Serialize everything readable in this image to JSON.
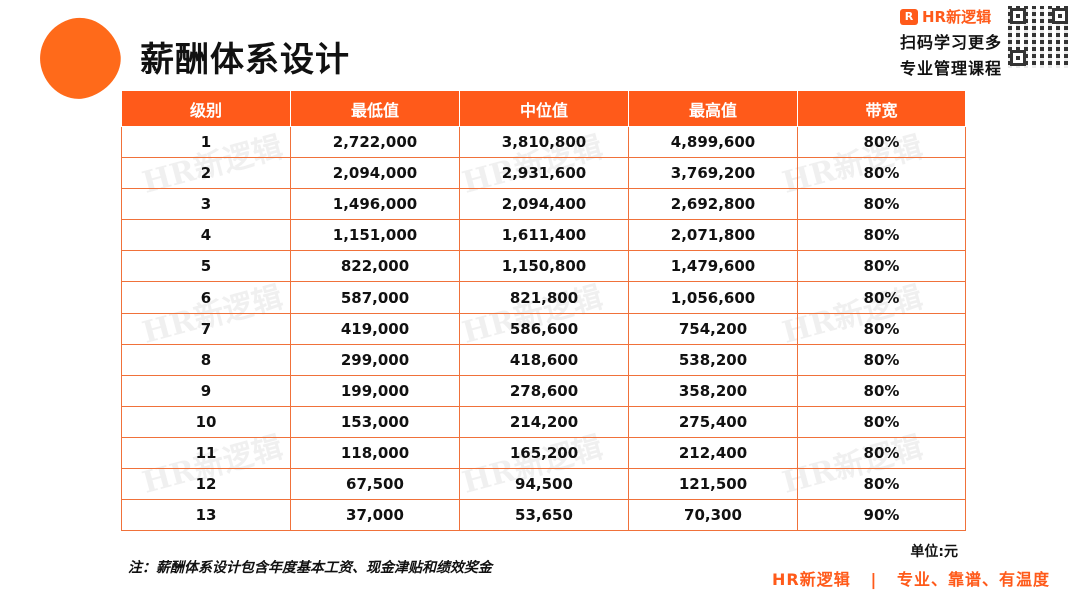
{
  "title": "薪酬体系设计",
  "brand": {
    "logo_mark": "R",
    "logo_text": "HR新逻辑",
    "line1": "扫码学习更多",
    "line2": "专业管理课程"
  },
  "watermark_text": "HR新逻辑",
  "table": {
    "headers": [
      "级别",
      "最低值",
      "中位值",
      "最高值",
      "带宽"
    ],
    "rows": [
      [
        "1",
        "2,722,000",
        "3,810,800",
        "4,899,600",
        "80%"
      ],
      [
        "2",
        "2,094,000",
        "2,931,600",
        "3,769,200",
        "80%"
      ],
      [
        "3",
        "1,496,000",
        "2,094,400",
        "2,692,800",
        "80%"
      ],
      [
        "4",
        "1,151,000",
        "1,611,400",
        "2,071,800",
        "80%"
      ],
      [
        "5",
        "822,000",
        "1,150,800",
        "1,479,600",
        "80%"
      ],
      [
        "6",
        "587,000",
        "821,800",
        "1,056,600",
        "80%"
      ],
      [
        "7",
        "419,000",
        "586,600",
        "754,200",
        "80%"
      ],
      [
        "8",
        "299,000",
        "418,600",
        "538,200",
        "80%"
      ],
      [
        "9",
        "199,000",
        "278,600",
        "358,200",
        "80%"
      ],
      [
        "10",
        "153,000",
        "214,200",
        "275,400",
        "80%"
      ],
      [
        "11",
        "118,000",
        "165,200",
        "212,400",
        "80%"
      ],
      [
        "12",
        "67,500",
        "94,500",
        "121,500",
        "80%"
      ],
      [
        "13",
        "37,000",
        "53,650",
        "70,300",
        "90%"
      ]
    ]
  },
  "unit_label": "单位:元",
  "note": "注：薪酬体系设计包含年度基本工资、现金津贴和绩效奖金",
  "footer": "HR新逻辑   |   专业、靠谱、有温度",
  "colors": {
    "accent": "#ff5a1a",
    "border": "#f0713a",
    "text": "#111111"
  }
}
